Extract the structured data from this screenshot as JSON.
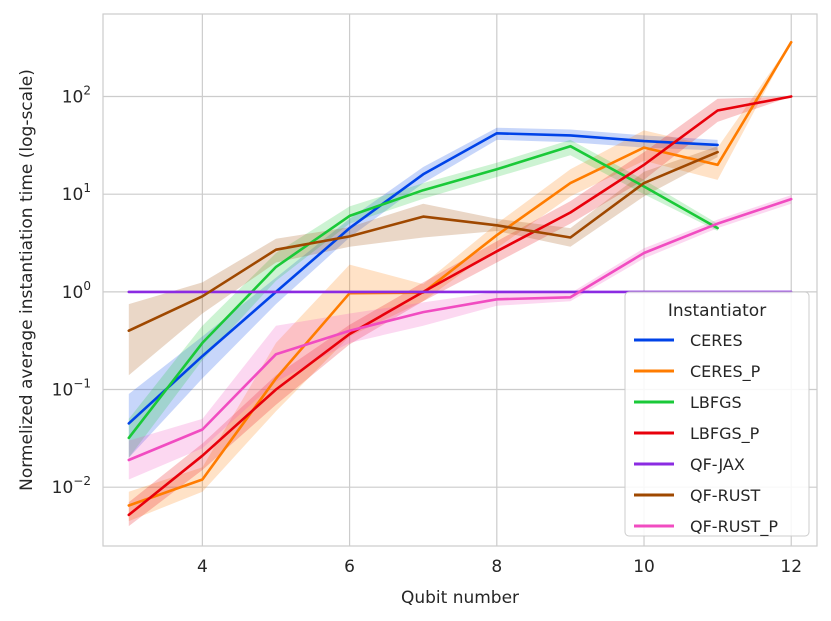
{
  "chart_data": {
    "type": "line",
    "title": "",
    "xlabel": "Qubit number",
    "ylabel": "Normelized average instantiation time (log-scale)",
    "yscale": "log",
    "xlim": [
      2.65,
      12.35
    ],
    "ylim": [
      0.0025,
      700
    ],
    "grid": true,
    "x_ticks": [
      4,
      6,
      8,
      10,
      12
    ],
    "x_tick_labels": [
      "4",
      "6",
      "8",
      "10",
      "12"
    ],
    "y_ticks": [
      0.01,
      0.1,
      1,
      10,
      100
    ],
    "y_tick_labels": [
      {
        "base": "10",
        "exp": "−2"
      },
      {
        "base": "10",
        "exp": "−1"
      },
      {
        "base": "10",
        "exp": "0"
      },
      {
        "base": "10",
        "exp": "1"
      },
      {
        "base": "10",
        "exp": "2"
      }
    ],
    "legend": {
      "title": "Instantiator",
      "position": "lower-right"
    },
    "series": [
      {
        "name": "CERES",
        "color": "#0043e8",
        "x": [
          3,
          4,
          5,
          6,
          7,
          8,
          9,
          10,
          11
        ],
        "values": [
          0.045,
          0.22,
          1.0,
          4.5,
          16,
          42,
          40,
          35,
          32
        ],
        "ci_low": [
          0.02,
          0.13,
          0.75,
          3.6,
          13,
          36,
          34,
          30,
          28
        ],
        "ci_high": [
          0.09,
          0.35,
          1.4,
          5.6,
          19,
          48,
          46,
          40,
          36
        ]
      },
      {
        "name": "CERES_P",
        "color": "#ff7c00",
        "x": [
          3,
          4,
          5,
          6,
          7,
          8,
          9,
          10,
          11,
          12
        ],
        "values": [
          0.0065,
          0.012,
          0.13,
          0.97,
          0.98,
          3.8,
          13,
          30,
          20,
          360
        ],
        "ci_low": [
          0.0045,
          0.009,
          0.06,
          0.35,
          0.8,
          2.8,
          9.5,
          22,
          14,
          360
        ],
        "ci_high": [
          0.009,
          0.016,
          0.3,
          1.9,
          1.2,
          5.0,
          18,
          45,
          30,
          360
        ]
      },
      {
        "name": "LBFGS",
        "color": "#1ac938",
        "x": [
          3,
          4,
          5,
          6,
          7,
          8,
          9,
          10,
          11
        ],
        "values": [
          0.032,
          0.3,
          1.8,
          6,
          11,
          18,
          31,
          12,
          4.5
        ],
        "ci_low": [
          0.02,
          0.2,
          1.3,
          5,
          9,
          15,
          25,
          10,
          4.2
        ],
        "ci_high": [
          0.05,
          0.45,
          2.5,
          7.5,
          13,
          21,
          36,
          14,
          5.0
        ]
      },
      {
        "name": "LBFGS_P",
        "color": "#e8000b",
        "x": [
          3,
          4,
          5,
          6,
          7,
          8,
          9,
          10,
          11,
          12
        ],
        "values": [
          0.0052,
          0.021,
          0.1,
          0.37,
          1.0,
          2.6,
          6.5,
          20,
          72,
          100
        ],
        "ci_low": [
          0.004,
          0.015,
          0.07,
          0.29,
          0.8,
          2.0,
          5.0,
          14,
          55,
          100
        ],
        "ci_high": [
          0.007,
          0.028,
          0.14,
          0.46,
          1.25,
          3.3,
          8.5,
          27,
          95,
          100
        ]
      },
      {
        "name": "QF-JAX",
        "color": "#8b2be2",
        "x": [
          3,
          4,
          5,
          6,
          7,
          8,
          9,
          10,
          11,
          12
        ],
        "values": [
          1,
          1,
          1,
          1,
          1,
          1,
          1,
          1,
          1,
          1
        ],
        "ci_low": [
          1,
          1,
          1,
          1,
          1,
          1,
          1,
          1,
          1,
          1
        ],
        "ci_high": [
          1,
          1,
          1,
          1,
          1,
          1,
          1,
          1,
          1,
          1
        ]
      },
      {
        "name": "QF-RUST",
        "color": "#9f4800",
        "x": [
          3,
          4,
          5,
          6,
          7,
          8,
          9,
          10,
          11
        ],
        "values": [
          0.4,
          0.9,
          2.7,
          3.7,
          5.9,
          4.8,
          3.6,
          13,
          27
        ],
        "ci_low": [
          0.14,
          0.6,
          2.0,
          2.9,
          3.6,
          4.2,
          2.9,
          9.5,
          24
        ],
        "ci_high": [
          0.75,
          1.25,
          3.5,
          4.6,
          8.0,
          5.6,
          4.5,
          17,
          31
        ]
      },
      {
        "name": "QF-RUST_P",
        "color": "#f14cc1",
        "x": [
          3,
          4,
          5,
          6,
          7,
          8,
          9,
          10,
          11,
          12
        ],
        "values": [
          0.019,
          0.039,
          0.23,
          0.4,
          0.62,
          0.84,
          0.88,
          2.5,
          5.0,
          8.9
        ],
        "ci_low": [
          0.012,
          0.025,
          0.12,
          0.3,
          0.45,
          0.72,
          0.8,
          2.2,
          4.5,
          8.0
        ],
        "ci_high": [
          0.03,
          0.05,
          0.45,
          0.6,
          0.78,
          1.0,
          0.97,
          2.8,
          5.5,
          9.8
        ]
      }
    ]
  }
}
